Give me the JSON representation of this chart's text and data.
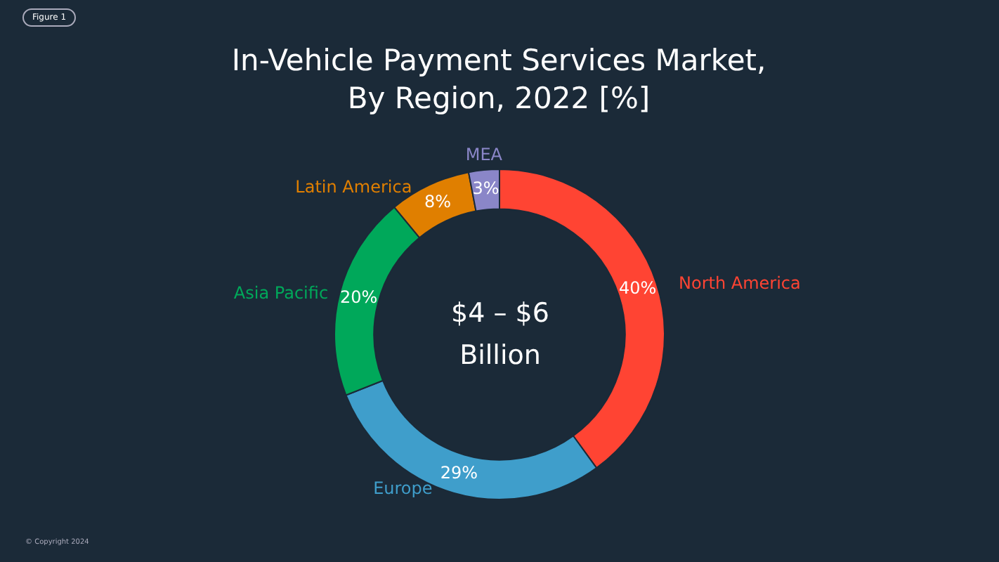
{
  "chart_data": {
    "type": "donut",
    "title": "In-Vehicle Payment Services Market, By Region, 2022 [%]",
    "categories": [
      "North America",
      "Europe",
      "Asia Pacific",
      "Latin America",
      "MEA"
    ],
    "values": [
      40,
      29,
      20,
      8,
      3
    ],
    "value_labels": [
      "40%",
      "29%",
      "20%",
      "8%",
      "3%"
    ],
    "colors": [
      "#ff4433",
      "#3f9ecb",
      "#00a85a",
      "#e07f00",
      "#8a86c8"
    ],
    "annotations": [
      "Figure 1",
      "$4 – $6 Billion",
      "© Copyright 2024"
    ],
    "legend": false
  }
}
